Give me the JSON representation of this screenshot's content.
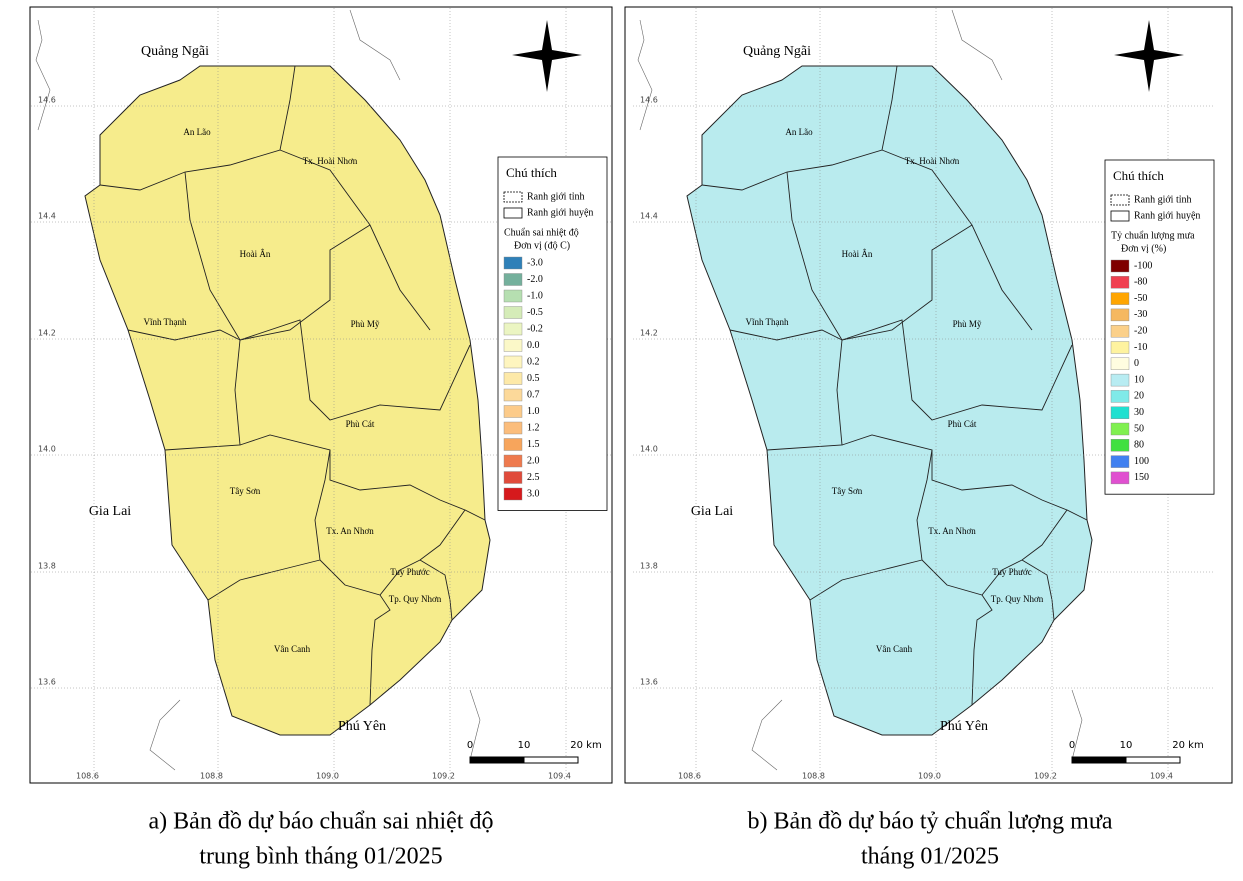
{
  "maps": [
    {
      "neighbors": [
        "Quảng Ngãi",
        "Gia Lai",
        "Phú Yên"
      ],
      "districts": [
        "An Lão",
        "Tx. Hoài Nhơn",
        "Hoài Ân",
        "Vĩnh Thạnh",
        "Phù Mỹ",
        "Phù Cát",
        "Tây Sơn",
        "Tx. An Nhơn",
        "Tuy Phước",
        "Tp. Quy Nhơn",
        "Vân Canh"
      ],
      "lat_labels": [
        "14.6",
        "14.4",
        "14.2",
        "14.0",
        "13.8",
        "13.6"
      ],
      "lon_labels": [
        "108.6",
        "108.8",
        "109.0",
        "109.2",
        "109.4"
      ],
      "fill": "#f6ec8c",
      "legend": {
        "title": "Chú thích",
        "boundaries": [
          "Ranh giới tỉnh",
          "Ranh giới huyện"
        ],
        "variable": "Chuẩn sai nhiệt độ",
        "unit": "Đơn vị (độ C)",
        "classes": [
          {
            "label": "-3.0",
            "color": "#2f80b8"
          },
          {
            "label": "-2.0",
            "color": "#74b09c"
          },
          {
            "label": "-1.0",
            "color": "#b6dfb1"
          },
          {
            "label": "-0.5",
            "color": "#d5ecb8"
          },
          {
            "label": "-0.2",
            "color": "#ebf5c2"
          },
          {
            "label": "0.0",
            "color": "#fbf8c8"
          },
          {
            "label": "0.2",
            "color": "#fef5bf"
          },
          {
            "label": "0.5",
            "color": "#fde9a8"
          },
          {
            "label": "0.7",
            "color": "#fcd99a"
          },
          {
            "label": "1.0",
            "color": "#fccb8a"
          },
          {
            "label": "1.2",
            "color": "#fbbd7c"
          },
          {
            "label": "1.5",
            "color": "#f7a55c"
          },
          {
            "label": "2.0",
            "color": "#ee7a4e"
          },
          {
            "label": "2.5",
            "color": "#e04b3b"
          },
          {
            "label": "3.0",
            "color": "#d6191c"
          }
        ]
      },
      "scale": [
        "0",
        "10",
        "20 km"
      ],
      "caption": [
        "a) Bản đồ dự báo chuẩn sai nhiệt độ",
        "trung bình tháng 01/2025"
      ]
    },
    {
      "neighbors": [
        "Quảng Ngãi",
        "Gia Lai",
        "Phú Yên"
      ],
      "districts": [
        "An Lão",
        "Tx. Hoài Nhơn",
        "Hoài Ân",
        "Vĩnh Thạnh",
        "Phù Mỹ",
        "Phù Cát",
        "Tây Sơn",
        "Tx. An Nhơn",
        "Tuy Phước",
        "Tp. Quy Nhơn",
        "Vân Canh"
      ],
      "lat_labels": [
        "14.6",
        "14.4",
        "14.2",
        "14.0",
        "13.8",
        "13.6"
      ],
      "lon_labels": [
        "108.6",
        "108.8",
        "109.0",
        "109.2",
        "109.4"
      ],
      "fill": "#b9ebee",
      "legend": {
        "title": "Chú thích",
        "boundaries": [
          "Ranh giới tỉnh",
          "Ranh giới huyện"
        ],
        "variable": "Tỷ chuẩn lượng mưa",
        "unit": "Đơn vị (%)",
        "classes": [
          {
            "label": "-100",
            "color": "#7f0000"
          },
          {
            "label": "-80",
            "color": "#f04050"
          },
          {
            "label": "-50",
            "color": "#ffa500"
          },
          {
            "label": "-30",
            "color": "#f5b860"
          },
          {
            "label": "-20",
            "color": "#fbd08a"
          },
          {
            "label": "-10",
            "color": "#fef3a0"
          },
          {
            "label": "0",
            "color": "#fffde0"
          },
          {
            "label": "10",
            "color": "#b8ecf2"
          },
          {
            "label": "20",
            "color": "#80eae8"
          },
          {
            "label": "30",
            "color": "#20e0d0"
          },
          {
            "label": "50",
            "color": "#80f050"
          },
          {
            "label": "80",
            "color": "#40e040"
          },
          {
            "label": "100",
            "color": "#4080f0"
          },
          {
            "label": "150",
            "color": "#e050d0"
          }
        ]
      },
      "scale": [
        "0",
        "10",
        "20 km"
      ],
      "caption": [
        "b) Bản đồ dự báo tỷ chuẩn lượng mưa",
        "tháng 01/2025"
      ]
    }
  ]
}
